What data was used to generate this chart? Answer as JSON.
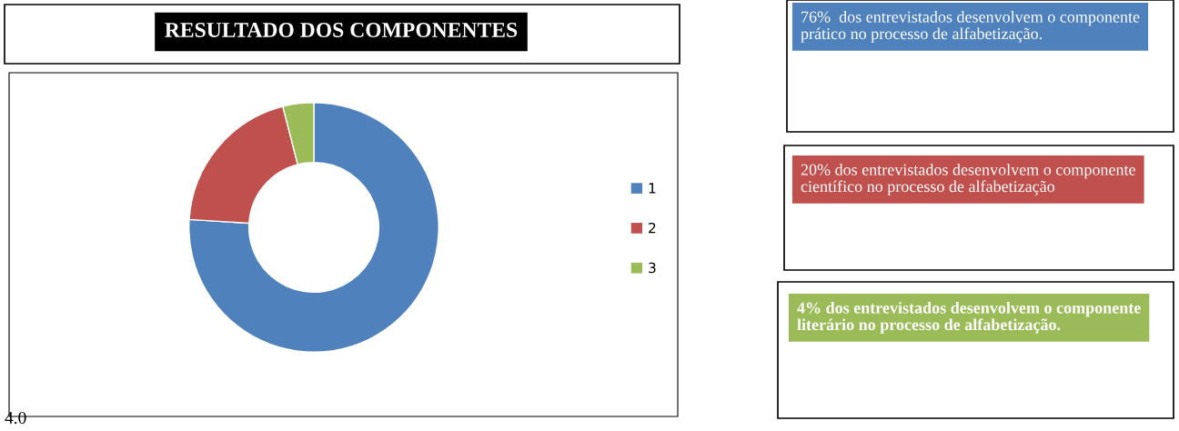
{
  "chart_data": {
    "type": "donut",
    "title": "RESULTADO DOS COMPONENTES",
    "categories": [
      "1",
      "2",
      "3"
    ],
    "values": [
      76,
      20,
      4
    ],
    "colors": [
      "#4f81bd",
      "#c0504d",
      "#9bbb59"
    ],
    "legend": "right",
    "annotations": [
      "76%  dos entrevistados desenvolvem o componente prático no processo de alfabetização.",
      "20% dos entrevistados desenvolvem o componente científico no processo de alfabetização",
      "4% dos entrevistados desenvolvem o componente literário no processo de alfabetização.",
      "4.0"
    ]
  }
}
